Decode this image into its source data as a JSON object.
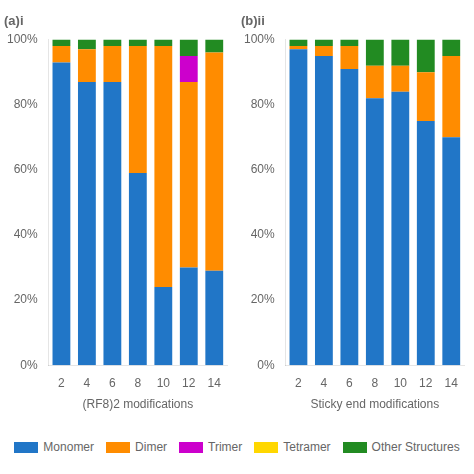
{
  "chart_data": [
    {
      "type": "bar",
      "title": "(a)i",
      "x_label": "(RF8)2 modifications",
      "categories": [
        "2",
        "4",
        "6",
        "8",
        "10",
        "12",
        "14"
      ],
      "series": [
        {
          "name": "Monomer",
          "color": "#2176C7",
          "values": [
            93,
            87,
            87,
            59,
            24,
            30,
            29
          ]
        },
        {
          "name": "Dimer",
          "color": "#FF8C00",
          "values": [
            5,
            10,
            11,
            39,
            74,
            57,
            67
          ]
        },
        {
          "name": "Trimer",
          "color": "#CC00CC",
          "values": [
            0,
            0,
            0,
            0,
            0,
            8,
            0
          ]
        },
        {
          "name": "Tetramer",
          "color": "#FFD700",
          "values": [
            0,
            0,
            0,
            0,
            0,
            0,
            0
          ]
        },
        {
          "name": "Other Structures",
          "color": "#228B22",
          "values": [
            2,
            3,
            2,
            2,
            2,
            5,
            4
          ]
        }
      ],
      "stacked": true,
      "grid": false,
      "legend": "bottom",
      "ylim": [
        0,
        100
      ],
      "yticks": [
        {
          "value": 0,
          "label": "0%"
        },
        {
          "value": 20,
          "label": "20%"
        },
        {
          "value": 40,
          "label": "40%"
        },
        {
          "value": 60,
          "label": "60%"
        },
        {
          "value": 80,
          "label": "80%"
        },
        {
          "value": 100,
          "label": "100%"
        }
      ]
    },
    {
      "type": "bar",
      "title": "(b)ii",
      "x_label": "Sticky end modifications",
      "categories": [
        "2",
        "4",
        "6",
        "8",
        "10",
        "12",
        "14"
      ],
      "series": [
        {
          "name": "Monomer",
          "color": "#2176C7",
          "values": [
            97,
            95,
            91,
            82,
            84,
            75,
            70
          ]
        },
        {
          "name": "Dimer",
          "color": "#FF8C00",
          "values": [
            1,
            3,
            7,
            10,
            8,
            15,
            25
          ]
        },
        {
          "name": "Trimer",
          "color": "#CC00CC",
          "values": [
            0,
            0,
            0,
            0,
            0,
            0,
            0
          ]
        },
        {
          "name": "Tetramer",
          "color": "#FFD700",
          "values": [
            0,
            0,
            0,
            0,
            0,
            0,
            0
          ]
        },
        {
          "name": "Other Structures",
          "color": "#228B22",
          "values": [
            2,
            2,
            2,
            8,
            8,
            10,
            5
          ]
        }
      ],
      "stacked": true,
      "grid": false,
      "ylim": [
        0,
        100
      ],
      "yticks": [
        {
          "value": 0,
          "label": "0%"
        },
        {
          "value": 20,
          "label": "20%"
        },
        {
          "value": 40,
          "label": "40%"
        },
        {
          "value": 60,
          "label": "60%"
        },
        {
          "value": 80,
          "label": "80%"
        },
        {
          "value": 100,
          "label": "100%"
        }
      ]
    }
  ]
}
